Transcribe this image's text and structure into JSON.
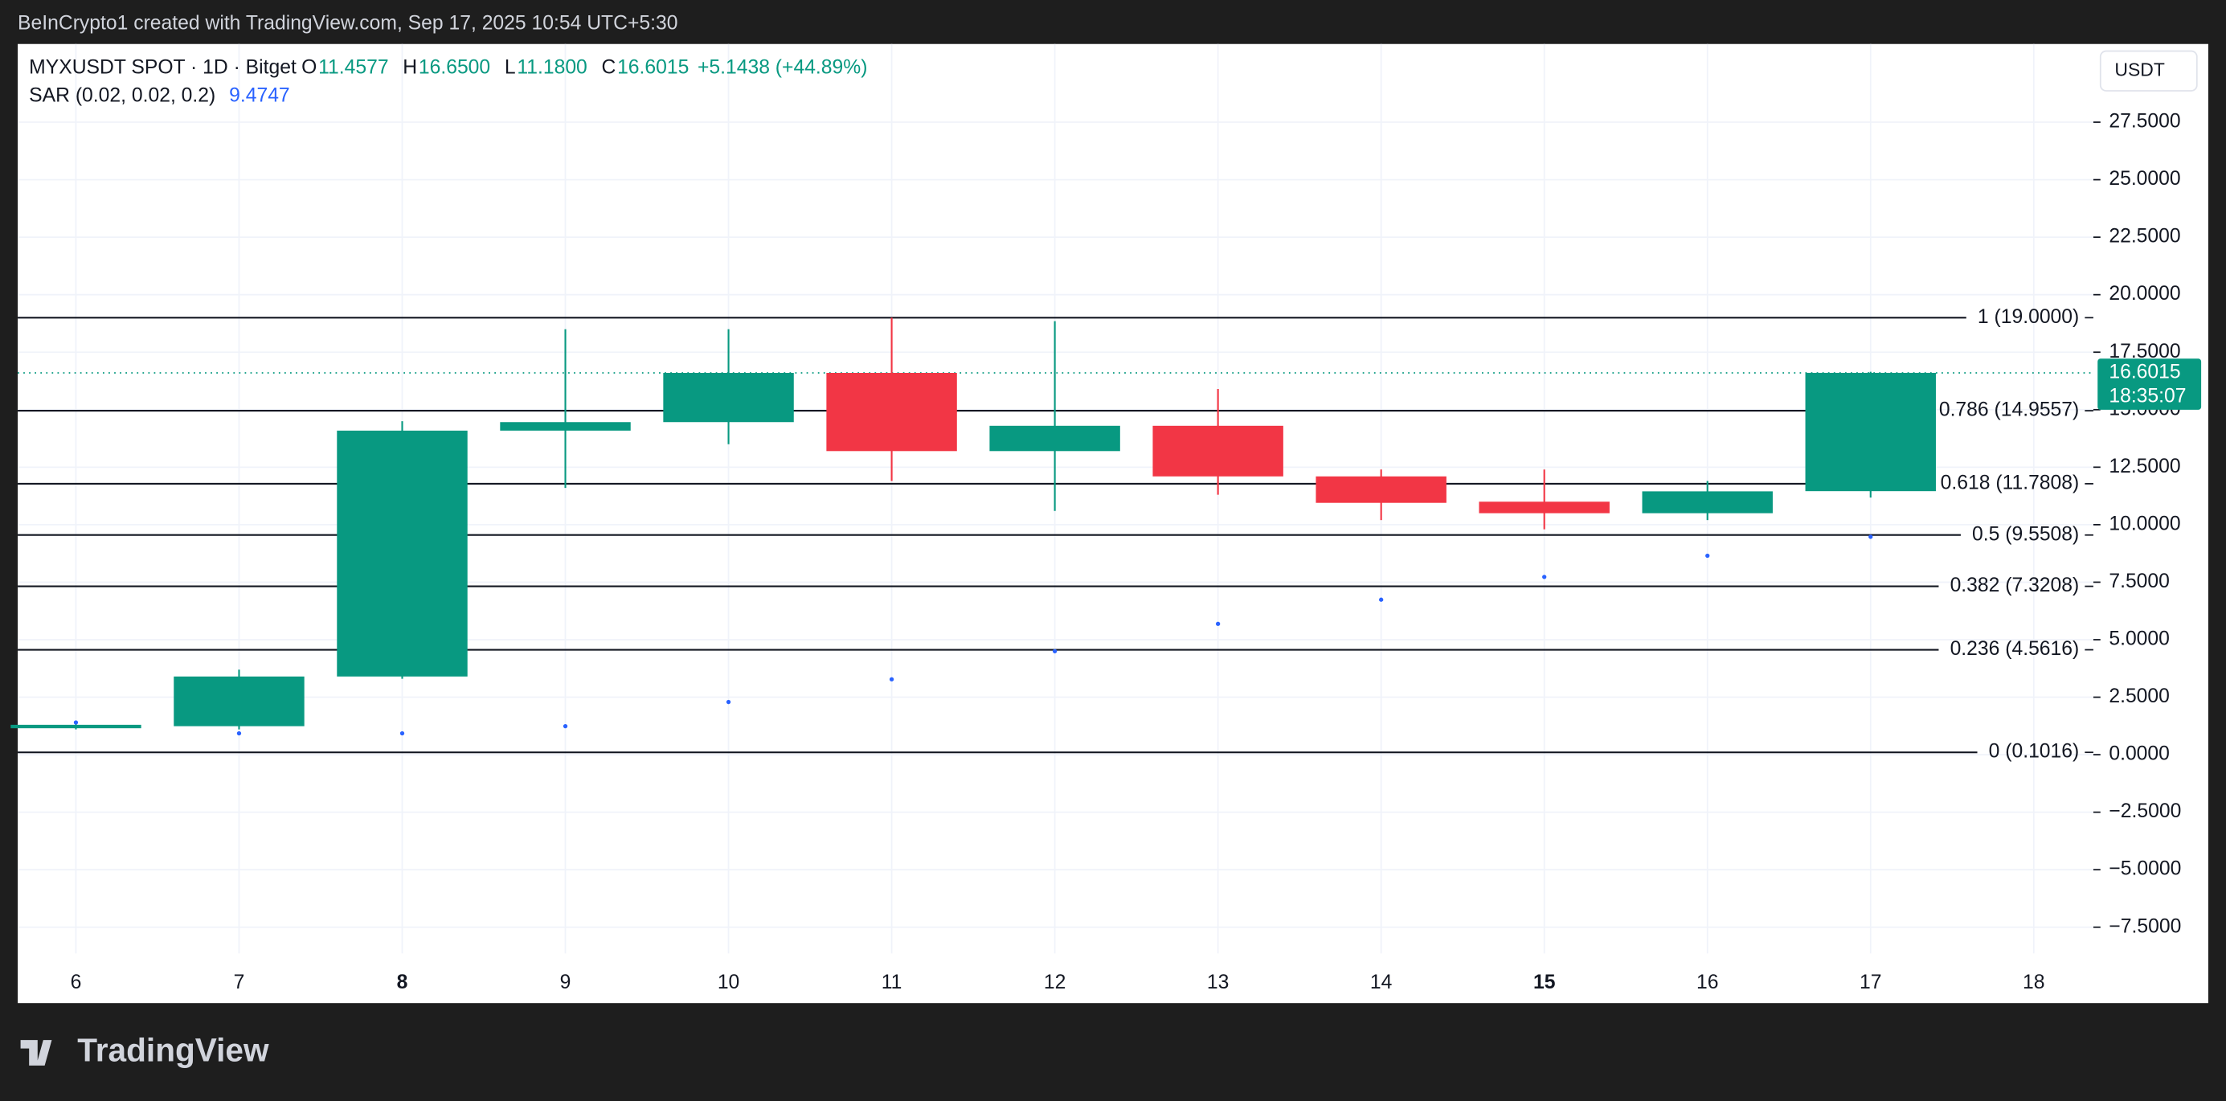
{
  "header": {
    "attribution": "BeInCrypto1 created with TradingView.com, Sep 17, 2025 10:54 UTC+5:30",
    "symbol": "MYXUSDT SPOT · 1D · Bitget",
    "ohlc": [
      {
        "key": "O",
        "value": "11.4577"
      },
      {
        "key": "H",
        "value": "16.6500"
      },
      {
        "key": "L",
        "value": "11.1800"
      },
      {
        "key": "C",
        "value": "16.6015"
      }
    ],
    "change": "+5.1438 (+44.89%)",
    "indicator": "SAR (0.02, 0.02, 0.2)",
    "indicator_value": "9.4747",
    "currency": "USDT",
    "price_tag": "16.6015",
    "countdown": "18:35:07"
  },
  "footer": {
    "logo": "TradingView"
  },
  "chart_data": {
    "type": "candlestick",
    "categories": [
      "6",
      "7",
      "8",
      "9",
      "10",
      "11",
      "12",
      "13",
      "14",
      "15",
      "16",
      "17",
      "18"
    ],
    "series": [
      {
        "name": "open",
        "values": [
          1.15,
          1.24,
          3.4,
          14.09,
          14.46,
          16.6,
          13.2,
          14.3,
          12.1,
          11.0,
          10.5,
          11.4577,
          null
        ]
      },
      {
        "name": "high",
        "values": [
          1.4,
          3.7,
          14.5,
          18.5,
          18.5,
          19.0,
          18.85,
          15.9,
          12.4,
          12.4,
          11.9,
          16.65,
          null
        ]
      },
      {
        "name": "low",
        "values": [
          1.1,
          1.1,
          3.3,
          11.6,
          13.5,
          11.9,
          10.6,
          11.3,
          10.2,
          9.8,
          10.2,
          11.18,
          null
        ]
      },
      {
        "name": "close",
        "values": [
          1.3,
          3.4,
          14.09,
          14.46,
          16.6,
          13.2,
          14.3,
          12.1,
          10.95,
          10.5,
          11.45,
          16.6015,
          null
        ]
      },
      {
        "name": "sar",
        "values": [
          1.4,
          0.93,
          0.93,
          1.24,
          2.29,
          3.28,
          4.5,
          5.69,
          6.74,
          7.73,
          8.65,
          9.4747,
          null
        ]
      }
    ],
    "up_color": "#089981",
    "down_color": "#f23645",
    "sar_color": "#2962ff",
    "last_price": 16.6015,
    "levels": [
      {
        "value": 19.0,
        "label": "1 (19.0000)"
      },
      {
        "value": 14.9557,
        "label": "0.786 (14.9557)"
      },
      {
        "value": 11.7808,
        "label": "0.618 (11.7808)"
      },
      {
        "value": 9.5508,
        "label": "0.5 (9.5508)"
      },
      {
        "value": 7.3208,
        "label": "0.382 (7.3208)"
      },
      {
        "value": 4.5616,
        "label": "0.236 (4.5616)"
      },
      {
        "value": 0.1016,
        "label": "0 (0.1016)"
      }
    ],
    "ylim": [
      -10.8,
      30.9
    ],
    "yticks": [
      {
        "value": -7.5,
        "label": "−7.5000"
      },
      {
        "value": -5,
        "label": "−5.0000"
      },
      {
        "value": -2.5,
        "label": "−2.5000"
      },
      {
        "value": 0,
        "label": "0.0000"
      },
      {
        "value": 2.5,
        "label": "2.5000"
      },
      {
        "value": 5,
        "label": "5.0000"
      },
      {
        "value": 7.5,
        "label": "7.5000"
      },
      {
        "value": 10,
        "label": "10.0000"
      },
      {
        "value": 12.5,
        "label": "12.5000"
      },
      {
        "value": 15,
        "label": "15.0000"
      },
      {
        "value": 17.5,
        "label": "17.5000"
      },
      {
        "value": 20,
        "label": "20.0000"
      },
      {
        "value": 22.5,
        "label": "22.5000"
      },
      {
        "value": 25,
        "label": "25.0000"
      },
      {
        "value": 27.5,
        "label": "27.5000"
      }
    ],
    "grid": true
  }
}
